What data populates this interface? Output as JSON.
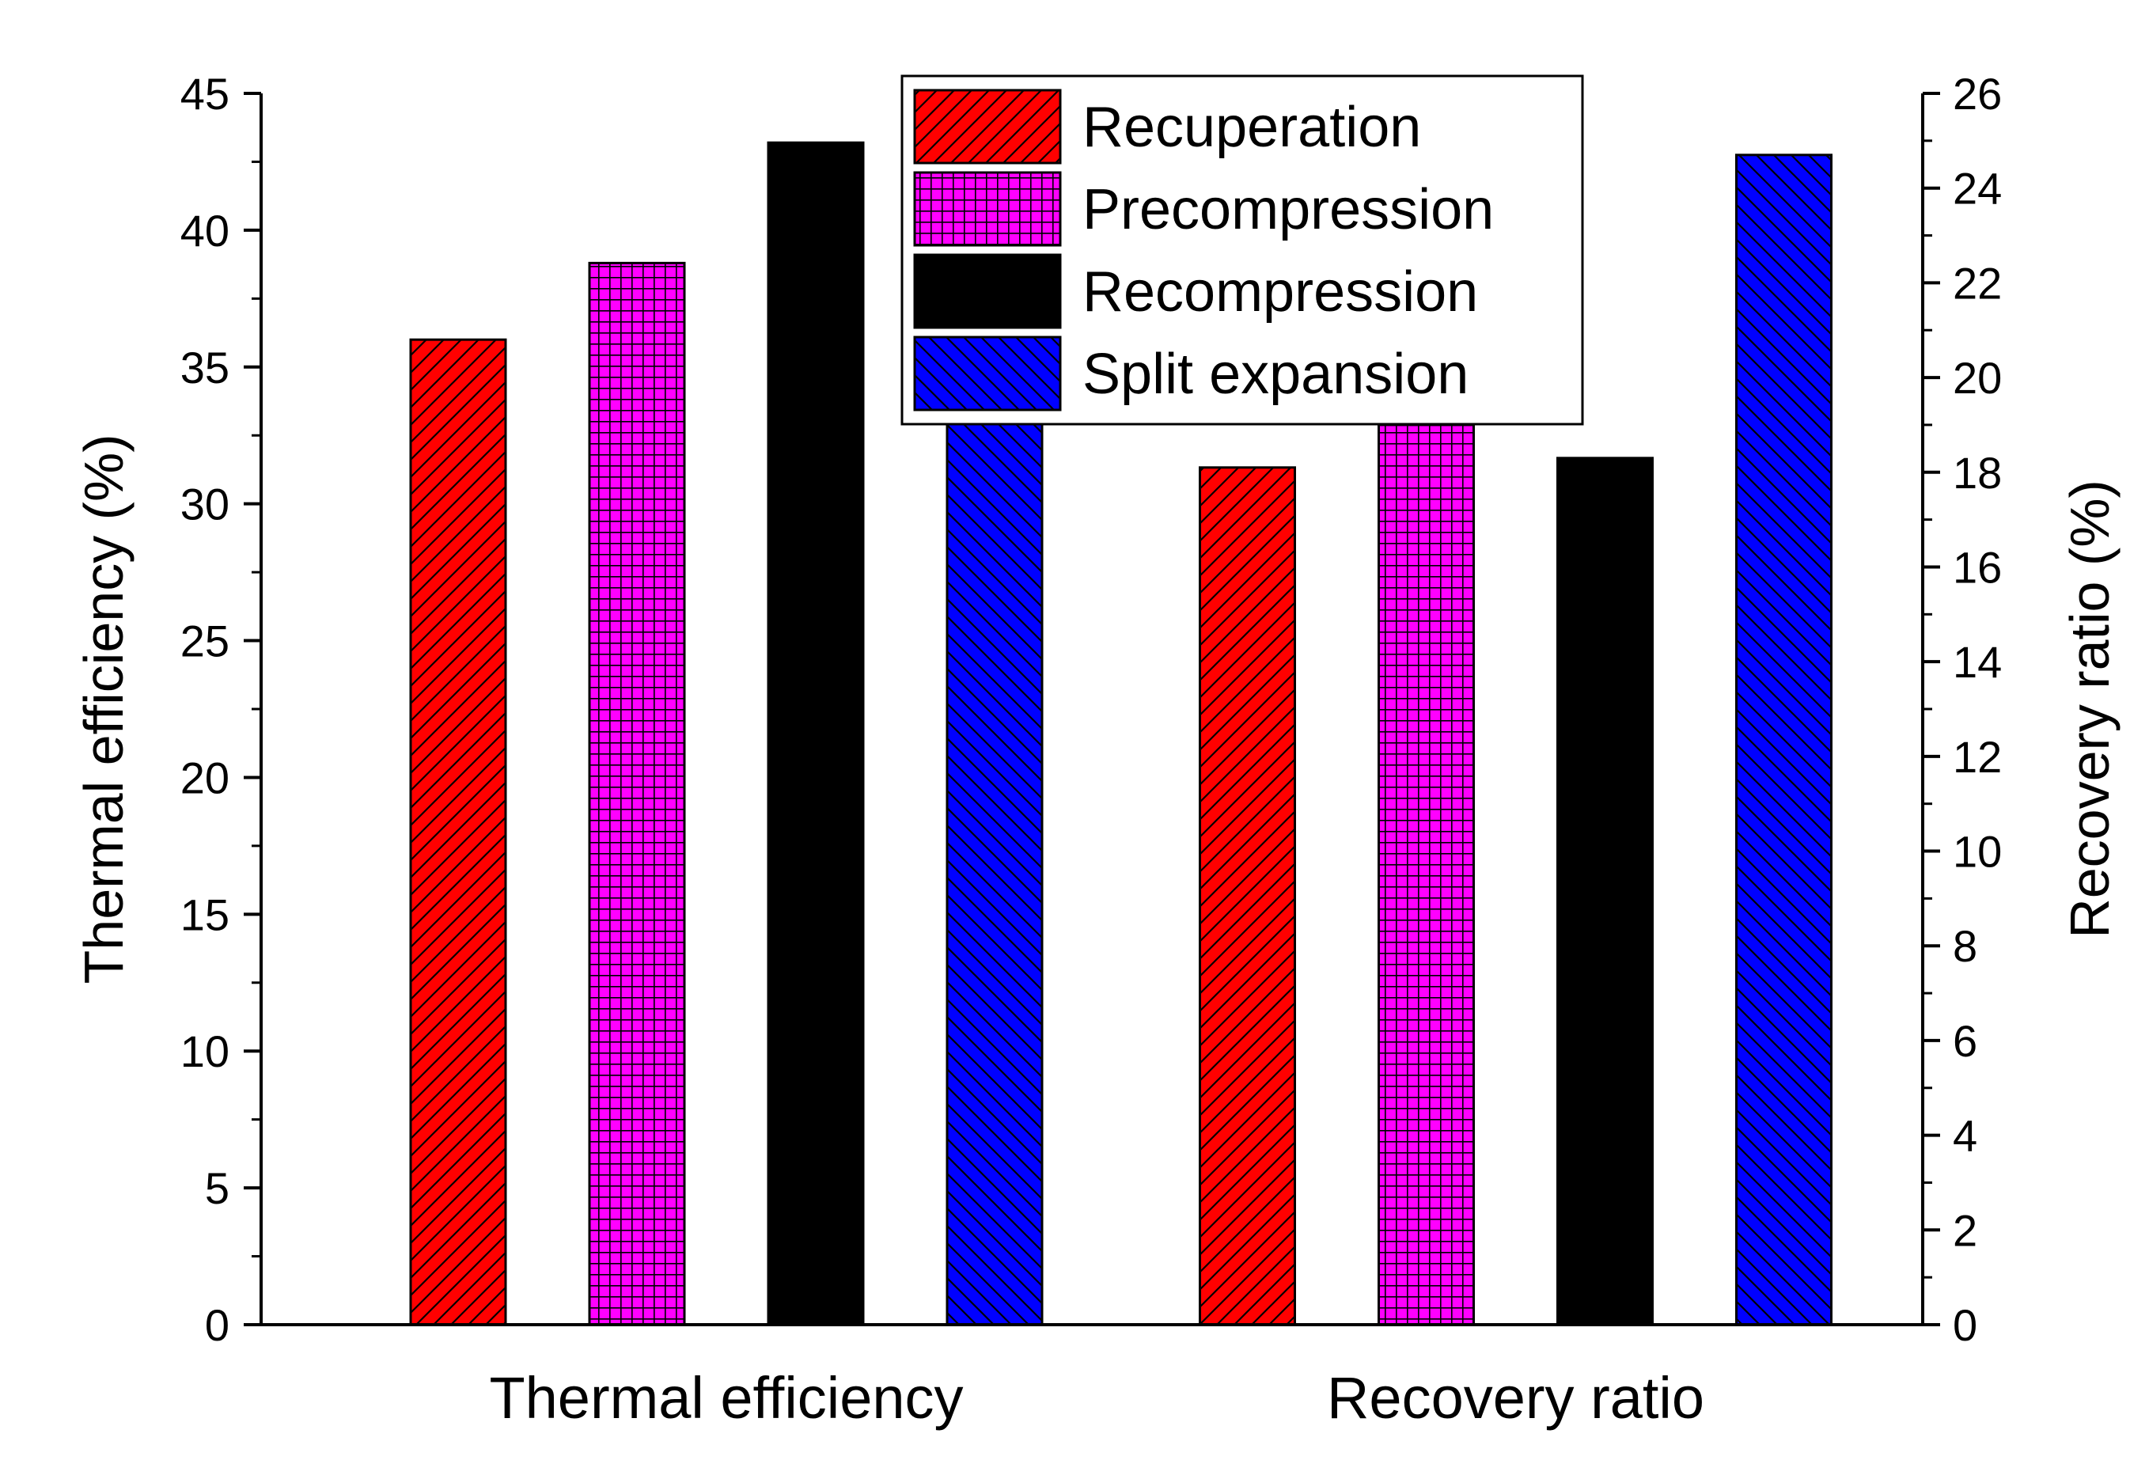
{
  "chart_data": {
    "type": "bar",
    "categories": [
      "Thermal efficiency",
      "Recovery ratio"
    ],
    "series": [
      {
        "name": "Recuperation",
        "color": "#ff0000",
        "pattern": "diagonal-up",
        "values": [
          36.0,
          18.1
        ]
      },
      {
        "name": "Precompression",
        "color": "#ff00ff",
        "pattern": "grid",
        "values": [
          38.8,
          19.0
        ]
      },
      {
        "name": "Recompression",
        "color": "#000000",
        "pattern": "solid",
        "values": [
          43.2,
          18.3
        ]
      },
      {
        "name": "Split expansion",
        "color": "#0000ff",
        "pattern": "diagonal-down",
        "values": [
          33.0,
          24.7
        ]
      }
    ],
    "axes": {
      "primary_y": {
        "label": "Thermal efficiency (%)",
        "range": [
          0,
          45
        ],
        "ticks": [
          "0",
          "5",
          "10",
          "15",
          "20",
          "25",
          "30",
          "35",
          "40",
          "45"
        ]
      },
      "secondary_y": {
        "label": "Recovery ratio (%)",
        "range": [
          0,
          26
        ],
        "ticks": [
          "0",
          "2",
          "4",
          "6",
          "8",
          "10",
          "12",
          "14",
          "16",
          "18",
          "20",
          "22",
          "24",
          "26"
        ]
      }
    },
    "category_axis_map": [
      "primary_y",
      "secondary_y"
    ],
    "legend_position": "top-center",
    "grid": false
  }
}
